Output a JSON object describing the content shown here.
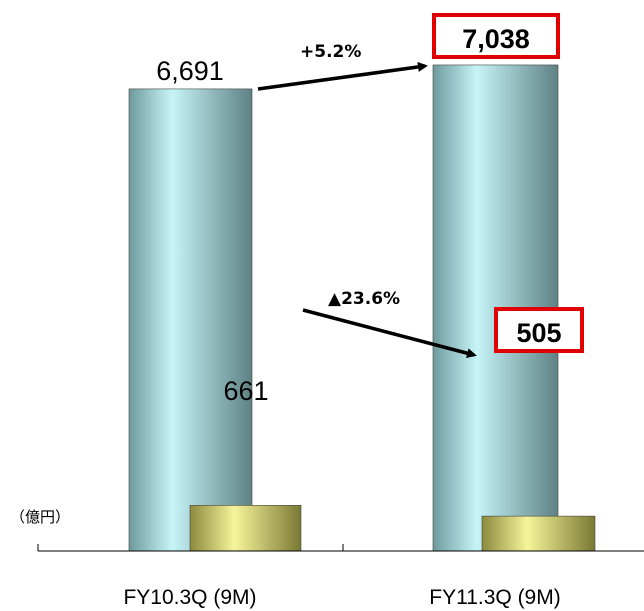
{
  "chart_data": {
    "type": "bar",
    "unit_label": "（億円）",
    "categories": [
      "FY10.3Q (9M)",
      "FY11.3Q (9M)"
    ],
    "series": [
      {
        "values": [
          6691,
          7038
        ],
        "labels": [
          "6,691",
          "7,038"
        ],
        "color": "#8fc9cc"
      },
      {
        "values": [
          661,
          505
        ],
        "labels": [
          "661",
          "505"
        ],
        "color": "#d9d98a"
      }
    ],
    "changes": [
      {
        "series": 0,
        "text": "+5.2%"
      },
      {
        "series": 1,
        "text": "▲23.6%"
      }
    ],
    "highlight_color": "#e00000"
  }
}
